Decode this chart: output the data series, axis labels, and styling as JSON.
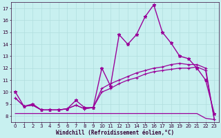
{
  "xlabel": "Windchill (Refroidissement éolien,°C)",
  "bg_color": "#c8f0f0",
  "grid_color": "#b0dede",
  "line_color": "#990099",
  "xlim": [
    -0.5,
    23.5
  ],
  "ylim": [
    7.5,
    17.5
  ],
  "xticks": [
    0,
    1,
    2,
    3,
    4,
    5,
    6,
    7,
    8,
    9,
    10,
    11,
    12,
    13,
    14,
    15,
    16,
    17,
    18,
    19,
    20,
    21,
    22,
    23
  ],
  "yticks": [
    8,
    9,
    10,
    11,
    12,
    13,
    14,
    15,
    16,
    17
  ],
  "series": [
    {
      "x": [
        0,
        1,
        2,
        3,
        4,
        5,
        6,
        7,
        8,
        9,
        10,
        11,
        12,
        13,
        14,
        15,
        16,
        17,
        18,
        19,
        20,
        21,
        22,
        23
      ],
      "y": [
        10.0,
        8.8,
        9.0,
        8.5,
        8.5,
        8.5,
        8.6,
        9.3,
        8.7,
        8.7,
        12.0,
        10.5,
        14.8,
        14.0,
        14.8,
        16.3,
        17.3,
        15.0,
        14.1,
        13.0,
        12.8,
        12.0,
        11.0,
        8.2
      ],
      "marker": "*",
      "markersize": 3.5,
      "lw": 1.0
    },
    {
      "x": [
        0,
        1,
        2,
        3,
        4,
        5,
        6,
        7,
        8,
        9,
        10,
        11,
        12,
        13,
        14,
        15,
        16,
        17,
        18,
        19,
        20,
        21,
        22,
        23
      ],
      "y": [
        9.5,
        8.8,
        8.9,
        8.5,
        8.5,
        8.5,
        8.6,
        8.9,
        8.6,
        8.7,
        10.3,
        10.7,
        11.0,
        11.3,
        11.6,
        11.8,
        12.0,
        12.1,
        12.3,
        12.4,
        12.3,
        12.3,
        12.0,
        7.7
      ],
      "marker": "+",
      "markersize": 3.0,
      "lw": 0.9
    },
    {
      "x": [
        0,
        1,
        2,
        3,
        4,
        5,
        6,
        7,
        8,
        9,
        10,
        11,
        12,
        13,
        14,
        15,
        16,
        17,
        18,
        19,
        20,
        21,
        22,
        23
      ],
      "y": [
        9.5,
        8.8,
        8.9,
        8.5,
        8.5,
        8.5,
        8.6,
        8.9,
        8.6,
        8.7,
        10.0,
        10.3,
        10.7,
        11.0,
        11.2,
        11.5,
        11.7,
        11.8,
        11.9,
        12.0,
        12.0,
        12.1,
        11.8,
        7.7
      ],
      "marker": "+",
      "markersize": 3.0,
      "lw": 0.9
    },
    {
      "x": [
        0,
        1,
        2,
        3,
        4,
        5,
        6,
        7,
        8,
        9,
        10,
        11,
        12,
        13,
        14,
        15,
        16,
        17,
        18,
        19,
        20,
        21,
        22,
        23
      ],
      "y": [
        8.2,
        8.2,
        8.2,
        8.2,
        8.2,
        8.2,
        8.2,
        8.2,
        8.2,
        8.2,
        8.2,
        8.2,
        8.2,
        8.2,
        8.2,
        8.2,
        8.2,
        8.2,
        8.2,
        8.2,
        8.2,
        8.2,
        7.8,
        7.7
      ],
      "marker": null,
      "markersize": 0,
      "lw": 0.9
    }
  ]
}
